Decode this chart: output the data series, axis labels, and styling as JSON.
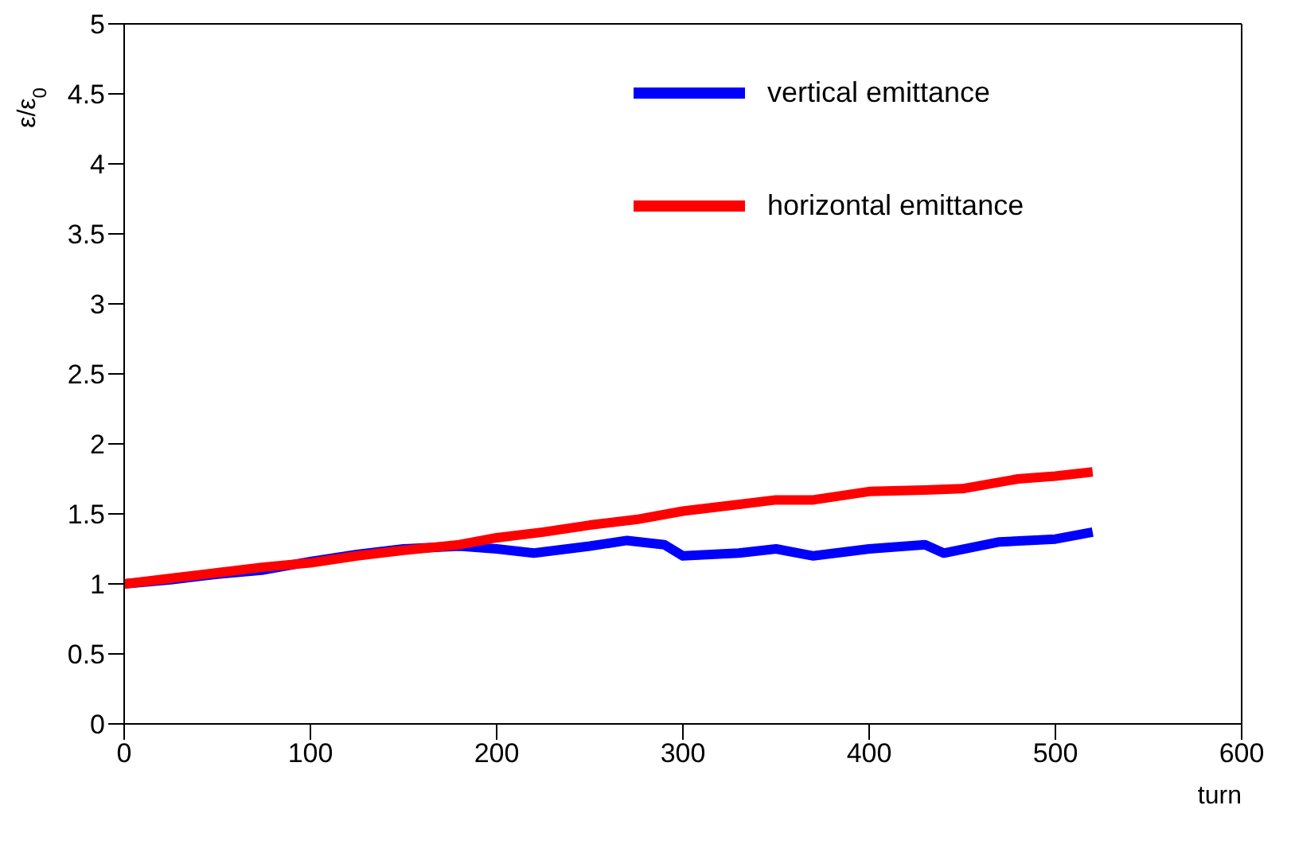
{
  "chart_data": {
    "type": "line",
    "xlabel": "turn",
    "ylabel": "ε/ε$_{0}$",
    "xlim": [
      0,
      600
    ],
    "xticks": [
      0,
      100,
      200,
      300,
      400,
      500,
      600
    ],
    "ylim": [
      0,
      5
    ],
    "yticks": [
      0,
      0.5,
      1,
      1.5,
      2,
      2.5,
      3,
      3.5,
      4,
      4.5,
      5
    ],
    "grid": false,
    "legend": "top right",
    "marker": "none",
    "line_style": "solid",
    "series": [
      {
        "name": "vertical emittance",
        "color": "#0000ff",
        "x": [
          0,
          25,
          50,
          75,
          100,
          125,
          150,
          180,
          200,
          220,
          250,
          270,
          290,
          300,
          330,
          350,
          370,
          400,
          430,
          440,
          470,
          500,
          520
        ],
        "values": [
          1.0,
          1.03,
          1.07,
          1.1,
          1.16,
          1.21,
          1.25,
          1.27,
          1.25,
          1.22,
          1.27,
          1.31,
          1.28,
          1.2,
          1.22,
          1.25,
          1.2,
          1.25,
          1.28,
          1.22,
          1.3,
          1.32,
          1.37
        ]
      },
      {
        "name": "horizontal emittance",
        "color": "#ff0000",
        "x": [
          0,
          25,
          50,
          75,
          100,
          125,
          150,
          180,
          200,
          225,
          250,
          275,
          300,
          325,
          350,
          370,
          400,
          430,
          450,
          480,
          500,
          520
        ],
        "values": [
          1.0,
          1.04,
          1.08,
          1.12,
          1.15,
          1.2,
          1.24,
          1.28,
          1.33,
          1.37,
          1.42,
          1.46,
          1.52,
          1.56,
          1.6,
          1.6,
          1.66,
          1.67,
          1.68,
          1.75,
          1.77,
          1.8
        ]
      }
    ]
  }
}
